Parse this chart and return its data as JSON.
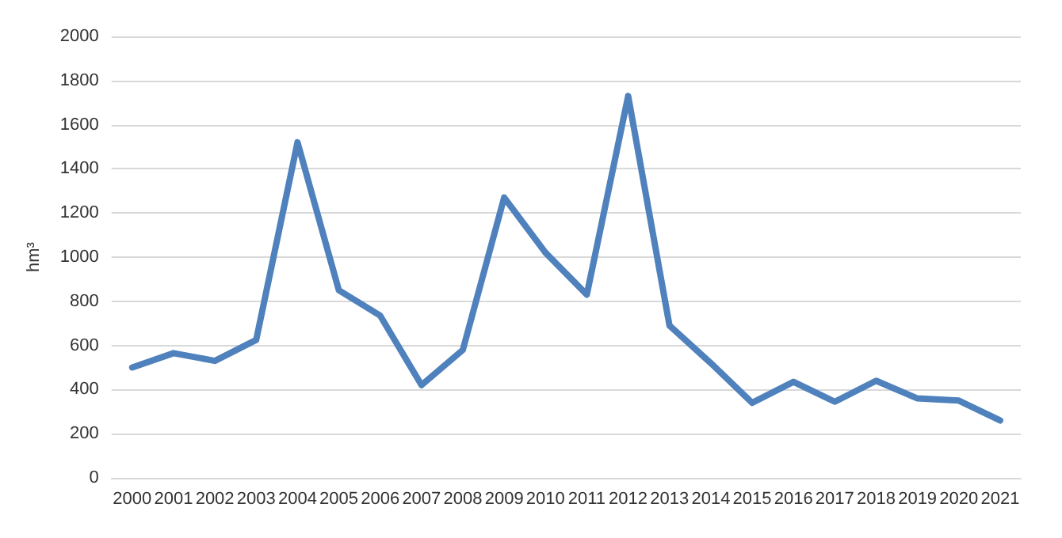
{
  "chart_data": {
    "type": "line",
    "ylabel": "hm³",
    "categories": [
      "2000",
      "2001",
      "2002",
      "2003",
      "2004",
      "2005",
      "2006",
      "2007",
      "2008",
      "2009",
      "2010",
      "2011",
      "2012",
      "2013",
      "2014",
      "2015",
      "2016",
      "2017",
      "2018",
      "2019",
      "2020",
      "2021"
    ],
    "series": [
      {
        "color": "#4f81bd",
        "values": [
          500,
          565,
          530,
          625,
          1520,
          850,
          735,
          420,
          580,
          1270,
          1020,
          830,
          1730,
          690,
          520,
          340,
          435,
          345,
          440,
          360,
          350,
          260
        ]
      }
    ],
    "ylim": [
      0,
      2000
    ],
    "yticks": [
      0,
      200,
      400,
      600,
      800,
      1000,
      1200,
      1400,
      1600,
      1800,
      2000
    ],
    "grid": "y",
    "marker": "none",
    "line_style": "solid"
  }
}
